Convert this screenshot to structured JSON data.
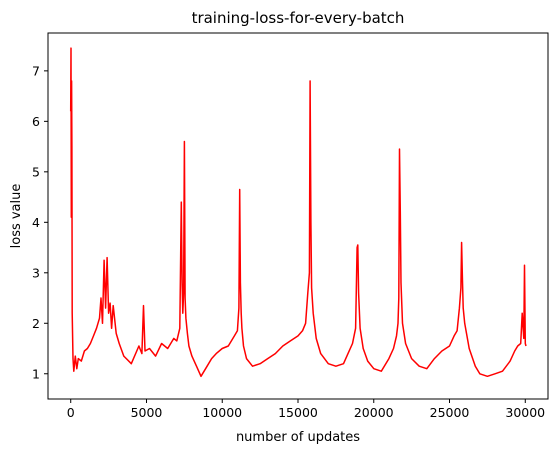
{
  "chart_data": {
    "type": "line",
    "title": "training-loss-for-every-batch",
    "xlabel": "number of updates",
    "ylabel": "loss value",
    "xlim": [
      -1500,
      31500
    ],
    "ylim": [
      0.5,
      7.75
    ],
    "xticks": [
      0,
      5000,
      10000,
      15000,
      20000,
      25000,
      30000
    ],
    "yticks": [
      1,
      2,
      3,
      4,
      5,
      6,
      7
    ],
    "grid": false,
    "legend": "none",
    "series": [
      {
        "color": "#ff0000",
        "x": [
          0,
          20,
          40,
          60,
          80,
          100,
          150,
          200,
          300,
          400,
          500,
          700,
          900,
          1100,
          1300,
          1500,
          1700,
          1900,
          2000,
          2100,
          2200,
          2300,
          2400,
          2500,
          2600,
          2700,
          2800,
          3000,
          3200,
          3500,
          4000,
          4500,
          4700,
          4800,
          4900,
          5200,
          5600,
          6000,
          6400,
          6800,
          7000,
          7200,
          7300,
          7350,
          7400,
          7450,
          7500,
          7550,
          7600,
          7700,
          7800,
          8000,
          8300,
          8600,
          9000,
          9300,
          9600,
          10000,
          10400,
          10800,
          11000,
          11100,
          11150,
          11200,
          11250,
          11300,
          11400,
          11600,
          12000,
          12500,
          13000,
          13500,
          14000,
          14500,
          15000,
          15300,
          15500,
          15650,
          15750,
          15800,
          15850,
          15900,
          16000,
          16200,
          16500,
          17000,
          17500,
          18000,
          18300,
          18600,
          18800,
          18900,
          18950,
          19000,
          19100,
          19300,
          19600,
          20000,
          20500,
          21000,
          21300,
          21500,
          21600,
          21650,
          21700,
          21750,
          21800,
          21900,
          22100,
          22500,
          23000,
          23500,
          24000,
          24500,
          25000,
          25300,
          25500,
          25650,
          25750,
          25800,
          25850,
          25900,
          26000,
          26300,
          26700,
          27000,
          27500,
          28000,
          28500,
          29000,
          29300,
          29500,
          29700,
          29800,
          29900,
          29950,
          30000,
          30050
        ],
        "values": [
          6.2,
          7.45,
          4.1,
          6.8,
          5.5,
          2.2,
          1.3,
          1.05,
          1.35,
          1.1,
          1.3,
          1.25,
          1.45,
          1.5,
          1.6,
          1.75,
          1.9,
          2.1,
          2.5,
          2.0,
          3.25,
          2.3,
          3.3,
          2.2,
          2.4,
          1.9,
          2.35,
          1.8,
          1.6,
          1.35,
          1.2,
          1.55,
          1.4,
          2.35,
          1.45,
          1.5,
          1.35,
          1.6,
          1.5,
          1.7,
          1.65,
          1.9,
          4.4,
          2.8,
          2.2,
          2.6,
          5.6,
          2.5,
          2.1,
          1.8,
          1.55,
          1.35,
          1.15,
          0.95,
          1.15,
          1.3,
          1.4,
          1.5,
          1.55,
          1.75,
          1.85,
          2.3,
          4.65,
          2.8,
          2.2,
          1.9,
          1.55,
          1.3,
          1.15,
          1.2,
          1.3,
          1.4,
          1.55,
          1.65,
          1.75,
          1.85,
          2.0,
          2.6,
          3.0,
          6.8,
          4.0,
          2.7,
          2.2,
          1.7,
          1.4,
          1.2,
          1.15,
          1.2,
          1.4,
          1.6,
          1.9,
          3.5,
          3.55,
          2.6,
          1.9,
          1.5,
          1.25,
          1.1,
          1.05,
          1.3,
          1.5,
          1.75,
          2.0,
          2.5,
          5.45,
          4.2,
          2.8,
          2.0,
          1.6,
          1.3,
          1.15,
          1.1,
          1.3,
          1.45,
          1.55,
          1.75,
          1.85,
          2.3,
          2.7,
          3.6,
          2.9,
          2.3,
          2.0,
          1.5,
          1.15,
          1.0,
          0.95,
          1.0,
          1.05,
          1.25,
          1.45,
          1.55,
          1.6,
          2.2,
          1.7,
          3.15,
          1.6,
          1.55
        ]
      }
    ]
  }
}
